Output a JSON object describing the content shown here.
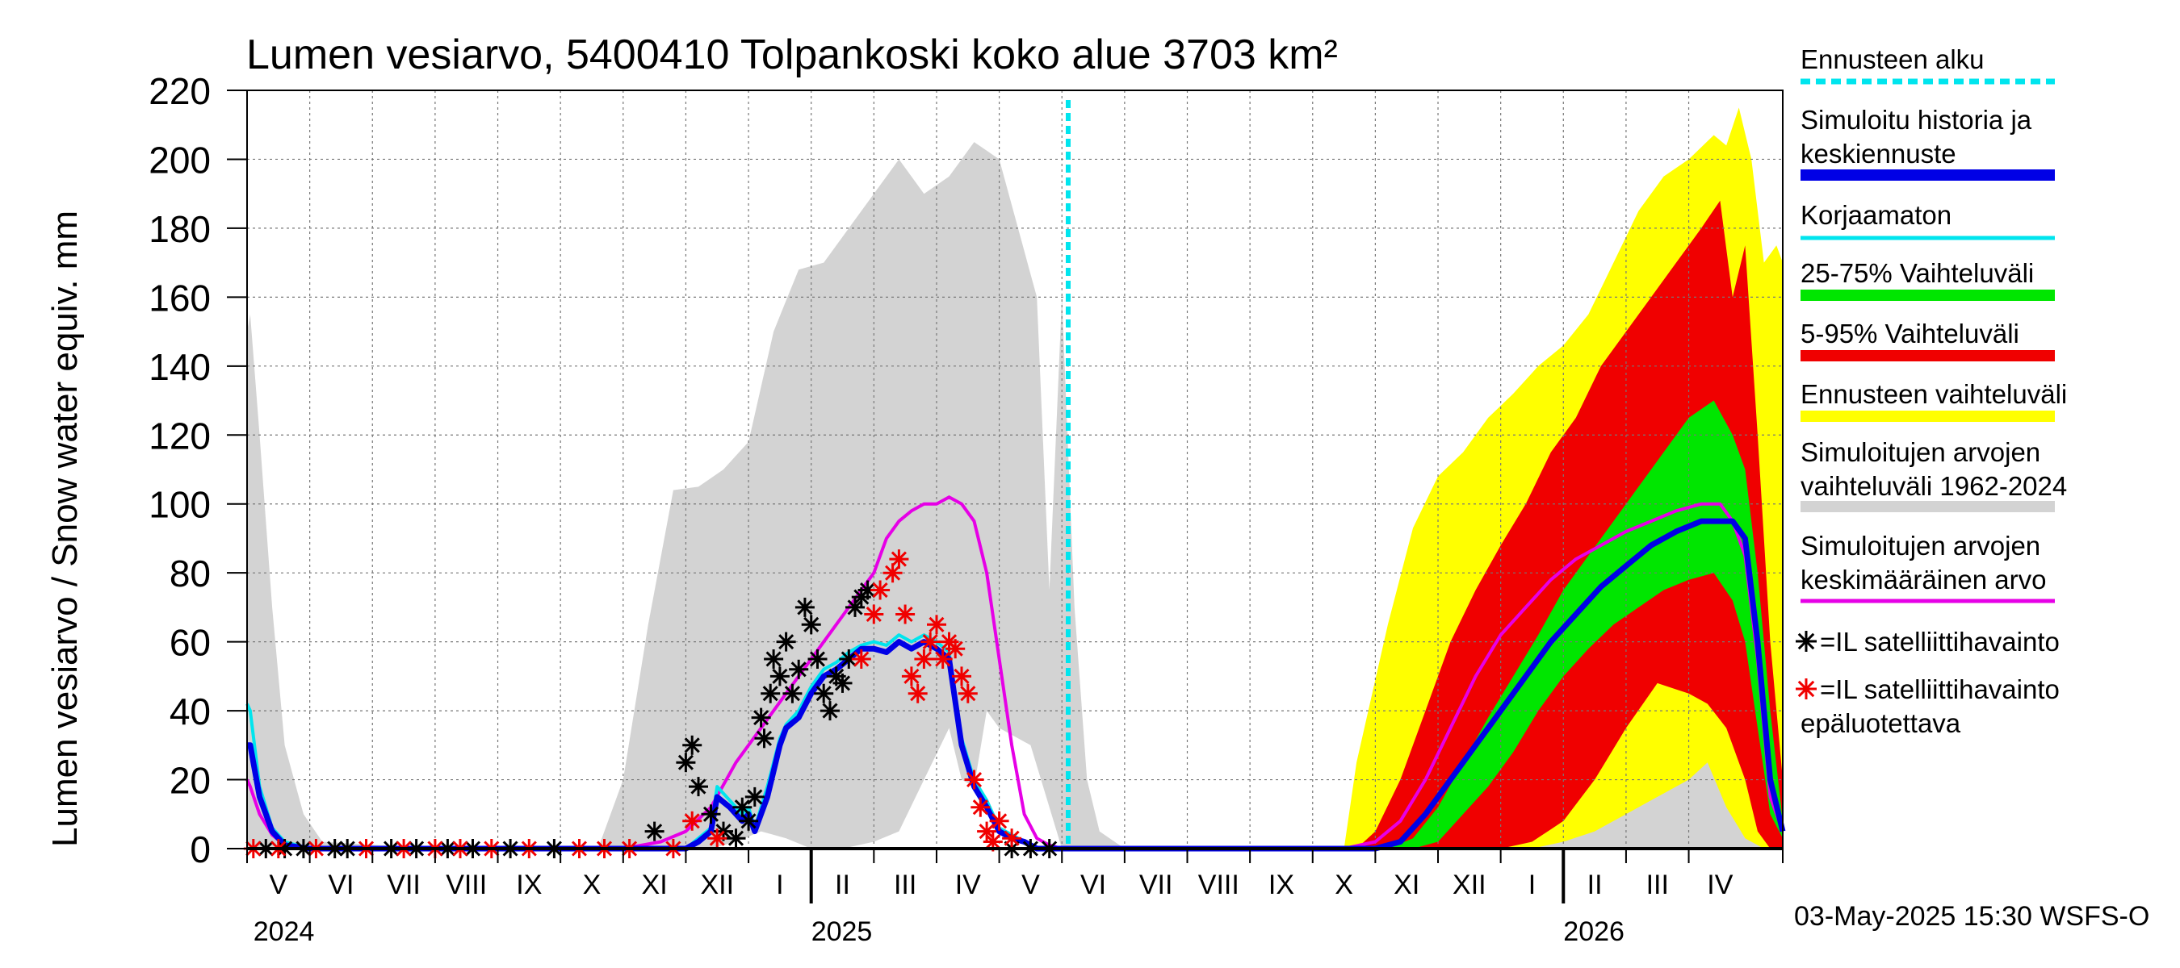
{
  "chart_data": {
    "type": "area",
    "title": "Lumen vesiarvo, 5400410 Tolpankoski koko alue 3703 km²",
    "ylabel": "Lumen vesiarvo / Snow water equiv.    mm",
    "ylim": [
      0,
      220
    ],
    "yticks": [
      0,
      20,
      40,
      60,
      80,
      100,
      120,
      140,
      160,
      180,
      200,
      220
    ],
    "grid": true,
    "x_unit": "months since 2024-04-01",
    "xlim": [
      0,
      24.5
    ],
    "forecast_start_x": 13.1,
    "month_labels": [
      "V",
      "VI",
      "VII",
      "VIII",
      "IX",
      "X",
      "XI",
      "XII",
      "I",
      "II",
      "III",
      "IV",
      "V",
      "VI",
      "VII",
      "VIII",
      "IX",
      "X",
      "XI",
      "XII",
      "I",
      "II",
      "III",
      "IV"
    ],
    "year_labels": [
      {
        "label": "2024",
        "x": 0.1
      },
      {
        "label": "2025",
        "x": 9.0
      },
      {
        "label": "2026",
        "x": 21.0
      }
    ],
    "timestamp": "03-May-2025 15:30 WSFS-O",
    "legend": [
      {
        "label": "Ennusteen alku",
        "color": "#00e5ee",
        "style": "dashed"
      },
      {
        "label": "Simuloitu historia ja\nkeskiennuste",
        "color": "#0000e6",
        "style": "thick"
      },
      {
        "label": "Korjaamaton",
        "color": "#00e5ee",
        "style": "line"
      },
      {
        "label": "25-75% Vaihteluväli",
        "color": "#00e600",
        "style": "thick"
      },
      {
        "label": "5-95% Vaihteluväli",
        "color": "#f00000",
        "style": "thick"
      },
      {
        "label": "Ennusteen vaihteluväli",
        "color": "#ffff00",
        "style": "thick"
      },
      {
        "label": "Simuloitujen arvojen\nvaihteluväli 1962-2024",
        "color": "#d3d3d3",
        "style": "thick"
      },
      {
        "label": "Simuloitujen arvojen\nkeskimääräinen arvo",
        "color": "#e600e6",
        "style": "line"
      },
      {
        "label": "=IL satelliittihavainto",
        "color": "#000000",
        "style": "star"
      },
      {
        "label": "=IL satelliittihavainto\nepäluotettava",
        "color": "#f00000",
        "style": "star"
      }
    ],
    "colors": {
      "hist_range": "#d3d3d3",
      "forecast_range": "#ffff00",
      "p5_95": "#f00000",
      "p25_75": "#00e600",
      "simulated": "#0000e6",
      "uncorrected": "#00e5ee",
      "mean": "#e600e6",
      "obs": "#000000",
      "obs_unreliable": "#f00000"
    },
    "series": [
      {
        "name": "hist_upper",
        "x": [
          0,
          0.05,
          0.2,
          0.4,
          0.6,
          0.9,
          1.2,
          3,
          5,
          5.6,
          6.0,
          6.4,
          6.8,
          7.2,
          7.6,
          8.0,
          8.4,
          8.8,
          9.2,
          9.6,
          10.0,
          10.4,
          10.8,
          11.2,
          11.6,
          12.0,
          12.3,
          12.6,
          12.8,
          13.0,
          13.2,
          13.4,
          13.6,
          14,
          16,
          17.5,
          18.0,
          18.5,
          19.0,
          19.5,
          20.0,
          20.5,
          21.0,
          21.5,
          22.0,
          22.5,
          23.0,
          23.3,
          23.6,
          23.9,
          24.2,
          24.5
        ],
        "y": [
          150,
          155,
          120,
          70,
          30,
          10,
          2,
          0,
          0,
          0,
          20,
          65,
          104,
          105,
          110,
          118,
          150,
          168,
          170,
          180,
          190,
          200,
          190,
          195,
          205,
          200,
          180,
          160,
          75,
          160,
          70,
          20,
          5,
          0,
          0,
          0,
          5,
          8,
          10,
          12,
          15,
          20,
          26,
          30,
          35,
          45,
          50,
          55,
          48,
          40,
          20,
          10
        ]
      },
      {
        "name": "hist_lower",
        "x": [
          0,
          5.5,
          6.6,
          7.0,
          7.4,
          7.8,
          8.2,
          8.6,
          9.0,
          9.5,
          10.0,
          10.4,
          10.8,
          11.2,
          11.4,
          11.6,
          11.8,
          12.0,
          12.5,
          13.0,
          24.5
        ],
        "y": [
          0,
          0,
          0,
          0,
          0,
          2,
          5,
          3,
          0,
          0,
          2,
          5,
          20,
          35,
          20,
          18,
          40,
          35,
          30,
          0,
          0
        ]
      },
      {
        "name": "forecast_upper",
        "x": [
          13.1,
          17.5,
          17.7,
          18.2,
          18.6,
          19.0,
          19.4,
          19.8,
          20.2,
          20.6,
          21.0,
          21.4,
          21.8,
          22.2,
          22.6,
          23.0,
          23.4,
          23.6,
          23.8,
          24.0,
          24.2,
          24.4,
          24.5
        ],
        "y": [
          0,
          0,
          25,
          65,
          93,
          108,
          115,
          125,
          132,
          140,
          146,
          155,
          170,
          185,
          195,
          200,
          207,
          204,
          215,
          200,
          170,
          175,
          170
        ]
      },
      {
        "name": "forecast_lower",
        "x": [
          13.1,
          18.5,
          19.0,
          19.5,
          20.0,
          20.5,
          21.0,
          21.5,
          22.0,
          22.5,
          23.0,
          23.3,
          23.6,
          23.9,
          24.2,
          24.5
        ],
        "y": [
          0,
          0,
          0,
          0,
          0,
          0,
          2,
          5,
          10,
          15,
          20,
          25,
          12,
          3,
          0,
          0
        ]
      },
      {
        "name": "p95",
        "x": [
          13.1,
          17.7,
          18.0,
          18.4,
          18.8,
          19.2,
          19.6,
          20.0,
          20.4,
          20.8,
          21.2,
          21.6,
          22.0,
          22.4,
          22.8,
          23.2,
          23.5,
          23.7,
          23.9,
          24.1,
          24.3,
          24.5
        ],
        "y": [
          0,
          0,
          5,
          20,
          40,
          60,
          75,
          88,
          100,
          115,
          125,
          140,
          150,
          160,
          170,
          180,
          188,
          160,
          175,
          120,
          60,
          20
        ]
      },
      {
        "name": "p5",
        "x": [
          13.1,
          19.0,
          19.5,
          20.0,
          20.5,
          21.0,
          21.5,
          22.0,
          22.5,
          23.0,
          23.3,
          23.6,
          23.9,
          24.1,
          24.3,
          24.5
        ],
        "y": [
          0,
          0,
          0,
          0,
          2,
          8,
          20,
          35,
          48,
          45,
          42,
          35,
          20,
          5,
          0,
          0
        ]
      },
      {
        "name": "p75",
        "x": [
          13.1,
          18.2,
          18.6,
          19.0,
          19.4,
          19.8,
          20.2,
          20.6,
          21.0,
          21.4,
          21.8,
          22.2,
          22.6,
          23.0,
          23.4,
          23.7,
          23.9,
          24.1,
          24.3,
          24.5
        ],
        "y": [
          0,
          0,
          3,
          12,
          25,
          38,
          50,
          62,
          75,
          85,
          95,
          105,
          115,
          125,
          130,
          120,
          110,
          80,
          40,
          8
        ]
      },
      {
        "name": "p25",
        "x": [
          13.1,
          18.6,
          19.0,
          19.4,
          19.8,
          20.2,
          20.6,
          21.0,
          21.4,
          21.8,
          22.2,
          22.6,
          23.0,
          23.4,
          23.7,
          23.9,
          24.1,
          24.3,
          24.5
        ],
        "y": [
          0,
          0,
          2,
          10,
          18,
          28,
          40,
          50,
          58,
          65,
          70,
          75,
          78,
          80,
          72,
          60,
          35,
          10,
          3
        ]
      },
      {
        "name": "Simuloitu historia ja keskiennuste",
        "x": [
          0,
          0.05,
          0.2,
          0.4,
          0.6,
          1.0,
          7.0,
          7.2,
          7.4,
          7.5,
          7.7,
          7.9,
          8.0,
          8.1,
          8.3,
          8.5,
          8.6,
          8.8,
          9.0,
          9.2,
          9.4,
          9.6,
          9.8,
          10.0,
          10.2,
          10.4,
          10.6,
          10.8,
          11.0,
          11.2,
          11.4,
          11.6,
          11.8,
          12.0,
          12.2,
          12.4,
          12.6,
          12.8,
          13.0,
          13.2,
          13.5,
          14.0,
          18.0,
          18.4,
          18.8,
          19.2,
          19.6,
          20.0,
          20.4,
          20.8,
          21.2,
          21.6,
          22.0,
          22.4,
          22.8,
          23.2,
          23.5,
          23.7,
          23.9,
          24.1,
          24.3,
          24.5
        ],
        "y": [
          30,
          30,
          15,
          5,
          1,
          0,
          0,
          2,
          5,
          15,
          12,
          8,
          10,
          5,
          15,
          30,
          35,
          38,
          45,
          50,
          52,
          55,
          58,
          58,
          57,
          60,
          58,
          60,
          58,
          55,
          30,
          18,
          12,
          5,
          3,
          2,
          0,
          0,
          0,
          0,
          0,
          0,
          0,
          2,
          10,
          20,
          30,
          40,
          50,
          60,
          68,
          76,
          82,
          88,
          92,
          95,
          95,
          95,
          90,
          60,
          20,
          5
        ]
      },
      {
        "name": "Korjaamaton",
        "x": [
          0,
          0.05,
          0.2,
          0.4,
          0.6,
          1.0,
          7.0,
          7.2,
          7.4,
          7.5,
          7.7,
          7.9,
          8.0,
          8.1,
          8.3,
          8.5,
          8.6,
          8.8,
          9.0,
          9.2,
          9.4,
          9.6,
          9.8,
          10.0,
          10.2,
          10.4,
          10.6,
          10.8,
          11.0,
          11.2,
          11.4,
          11.6,
          11.8,
          12.0,
          12.2,
          12.4,
          12.6,
          12.8,
          13.0,
          13.2,
          13.5,
          14.0
        ],
        "y": [
          42,
          40,
          18,
          6,
          2,
          0,
          0,
          3,
          6,
          18,
          14,
          10,
          12,
          6,
          18,
          32,
          36,
          40,
          47,
          52,
          54,
          57,
          59,
          60,
          59,
          62,
          60,
          62,
          60,
          57,
          32,
          20,
          14,
          6,
          4,
          2,
          0,
          0,
          0,
          0,
          0,
          0
        ]
      },
      {
        "name": "Simuloitujen arvojen keskimääräinen arvo",
        "x": [
          0,
          0.05,
          0.2,
          0.4,
          0.6,
          1.0,
          6.0,
          6.6,
          7.0,
          7.4,
          7.8,
          8.2,
          8.6,
          9.0,
          9.4,
          9.8,
          10.0,
          10.2,
          10.4,
          10.6,
          10.8,
          11.0,
          11.2,
          11.4,
          11.6,
          11.8,
          12.0,
          12.2,
          12.4,
          12.6,
          12.8,
          13.0,
          13.5,
          14.0,
          17.5,
          18.0,
          18.4,
          18.8,
          19.2,
          19.6,
          20.0,
          20.4,
          20.8,
          21.2,
          21.6,
          22.0,
          22.4,
          22.8,
          23.2,
          23.5,
          23.7,
          23.9,
          24.1,
          24.3,
          24.5
        ],
        "y": [
          20,
          18,
          10,
          4,
          1,
          0,
          0,
          2,
          5,
          12,
          25,
          35,
          45,
          55,
          65,
          75,
          80,
          90,
          95,
          98,
          100,
          100,
          102,
          100,
          95,
          80,
          55,
          30,
          10,
          3,
          1,
          0,
          0,
          0,
          0,
          2,
          8,
          20,
          35,
          50,
          62,
          70,
          78,
          84,
          88,
          92,
          95,
          98,
          100,
          100,
          95,
          85,
          55,
          15,
          5
        ]
      }
    ],
    "obs_black": [
      {
        "x": 0.3,
        "y": 0
      },
      {
        "x": 0.6,
        "y": 0
      },
      {
        "x": 0.9,
        "y": 0
      },
      {
        "x": 1.4,
        "y": 0
      },
      {
        "x": 1.6,
        "y": 0
      },
      {
        "x": 2.3,
        "y": 0
      },
      {
        "x": 2.7,
        "y": 0
      },
      {
        "x": 3.2,
        "y": 0
      },
      {
        "x": 3.6,
        "y": 0
      },
      {
        "x": 4.2,
        "y": 0
      },
      {
        "x": 4.9,
        "y": 0
      },
      {
        "x": 6.5,
        "y": 5
      },
      {
        "x": 7.0,
        "y": 25
      },
      {
        "x": 7.1,
        "y": 30
      },
      {
        "x": 7.2,
        "y": 18
      },
      {
        "x": 7.4,
        "y": 10
      },
      {
        "x": 7.6,
        "y": 5
      },
      {
        "x": 7.8,
        "y": 3
      },
      {
        "x": 7.9,
        "y": 12
      },
      {
        "x": 8.0,
        "y": 8
      },
      {
        "x": 8.1,
        "y": 15
      },
      {
        "x": 8.2,
        "y": 38
      },
      {
        "x": 8.25,
        "y": 32
      },
      {
        "x": 8.35,
        "y": 45
      },
      {
        "x": 8.4,
        "y": 55
      },
      {
        "x": 8.5,
        "y": 50
      },
      {
        "x": 8.6,
        "y": 60
      },
      {
        "x": 8.7,
        "y": 45
      },
      {
        "x": 8.8,
        "y": 52
      },
      {
        "x": 8.9,
        "y": 70
      },
      {
        "x": 9.0,
        "y": 65
      },
      {
        "x": 9.1,
        "y": 55
      },
      {
        "x": 9.2,
        "y": 45
      },
      {
        "x": 9.3,
        "y": 40
      },
      {
        "x": 9.4,
        "y": 50
      },
      {
        "x": 9.5,
        "y": 48
      },
      {
        "x": 9.6,
        "y": 55
      },
      {
        "x": 9.7,
        "y": 70
      },
      {
        "x": 9.8,
        "y": 73
      },
      {
        "x": 9.9,
        "y": 75
      },
      {
        "x": 12.2,
        "y": 0
      },
      {
        "x": 12.5,
        "y": 0
      },
      {
        "x": 12.8,
        "y": 0
      }
    ],
    "obs_red": [
      {
        "x": 0.1,
        "y": 0
      },
      {
        "x": 0.5,
        "y": 0
      },
      {
        "x": 1.1,
        "y": 0
      },
      {
        "x": 1.9,
        "y": 0
      },
      {
        "x": 2.5,
        "y": 0
      },
      {
        "x": 3.0,
        "y": 0
      },
      {
        "x": 3.4,
        "y": 0
      },
      {
        "x": 3.9,
        "y": 0
      },
      {
        "x": 4.5,
        "y": 0
      },
      {
        "x": 5.3,
        "y": 0
      },
      {
        "x": 5.7,
        "y": 0
      },
      {
        "x": 6.1,
        "y": 0
      },
      {
        "x": 6.8,
        "y": 0
      },
      {
        "x": 7.1,
        "y": 8
      },
      {
        "x": 7.5,
        "y": 3
      },
      {
        "x": 9.8,
        "y": 55
      },
      {
        "x": 10.0,
        "y": 68
      },
      {
        "x": 10.1,
        "y": 75
      },
      {
        "x": 10.3,
        "y": 80
      },
      {
        "x": 10.4,
        "y": 84
      },
      {
        "x": 10.5,
        "y": 68
      },
      {
        "x": 10.6,
        "y": 50
      },
      {
        "x": 10.7,
        "y": 45
      },
      {
        "x": 10.8,
        "y": 55
      },
      {
        "x": 10.9,
        "y": 60
      },
      {
        "x": 11.0,
        "y": 65
      },
      {
        "x": 11.1,
        "y": 55
      },
      {
        "x": 11.2,
        "y": 60
      },
      {
        "x": 11.3,
        "y": 58
      },
      {
        "x": 11.4,
        "y": 50
      },
      {
        "x": 11.5,
        "y": 45
      },
      {
        "x": 11.6,
        "y": 20
      },
      {
        "x": 11.7,
        "y": 12
      },
      {
        "x": 11.8,
        "y": 5
      },
      {
        "x": 11.9,
        "y": 2
      },
      {
        "x": 12.0,
        "y": 8
      },
      {
        "x": 12.2,
        "y": 3
      }
    ]
  }
}
